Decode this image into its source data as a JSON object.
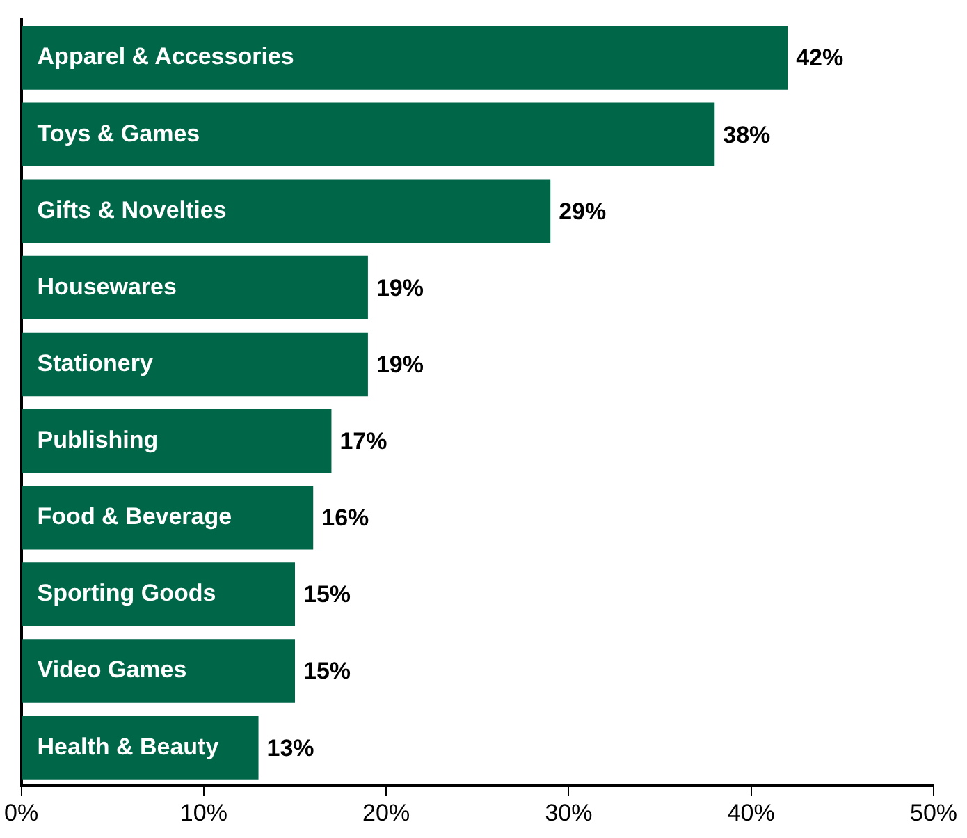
{
  "chart_data": {
    "type": "bar",
    "orientation": "horizontal",
    "categories": [
      "Apparel & Accessories",
      "Toys & Games",
      "Gifts & Novelties",
      "Housewares",
      "Stationery",
      "Publishing",
      "Food & Beverage",
      "Sporting Goods",
      "Video Games",
      "Health & Beauty"
    ],
    "values": [
      42,
      38,
      29,
      19,
      19,
      17,
      16,
      15,
      15,
      13
    ],
    "value_labels": [
      "42%",
      "38%",
      "29%",
      "19%",
      "19%",
      "17%",
      "16%",
      "15%",
      "15%",
      "13%"
    ],
    "color": "#006648",
    "xlim": [
      0,
      50
    ],
    "xticks": [
      {
        "value": 0,
        "label": "0%"
      },
      {
        "value": 10,
        "label": "10%"
      },
      {
        "value": 20,
        "label": "20%"
      },
      {
        "value": 30,
        "label": "30%"
      },
      {
        "value": 40,
        "label": "40%"
      },
      {
        "value": 50,
        "label": "50%"
      }
    ],
    "grid": false,
    "legend": false
  }
}
